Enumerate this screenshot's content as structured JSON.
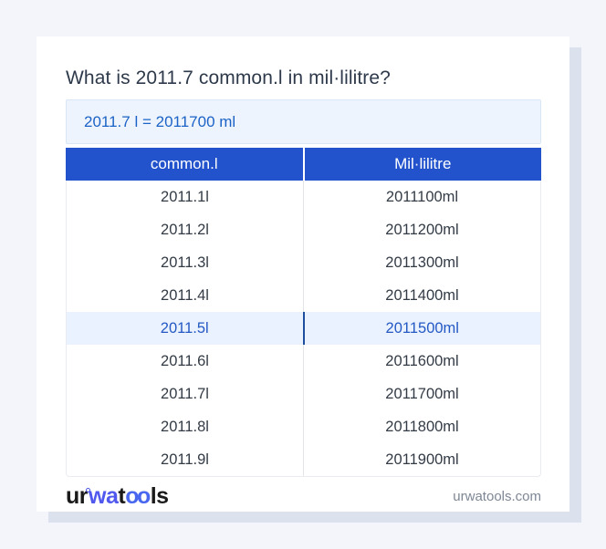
{
  "page": {
    "title": "What is 2011.7 common.l in mil·lilitre?",
    "answer_text": "2011.7 l = 2011700 ml"
  },
  "table": {
    "headers": [
      "common.l",
      "Mil·lilitre"
    ],
    "rows": [
      {
        "liters": "2011.1l",
        "milliliters": "2011100ml",
        "highlighted": false
      },
      {
        "liters": "2011.2l",
        "milliliters": "2011200ml",
        "highlighted": false
      },
      {
        "liters": "2011.3l",
        "milliliters": "2011300ml",
        "highlighted": false
      },
      {
        "liters": "2011.4l",
        "milliliters": "2011400ml",
        "highlighted": false
      },
      {
        "liters": "2011.5l",
        "milliliters": "2011500ml",
        "highlighted": true
      },
      {
        "liters": "2011.6l",
        "milliliters": "2011600ml",
        "highlighted": false
      },
      {
        "liters": "2011.7l",
        "milliliters": "2011700ml",
        "highlighted": false
      },
      {
        "liters": "2011.8l",
        "milliliters": "2011800ml",
        "highlighted": false
      },
      {
        "liters": "2011.9l",
        "milliliters": "2011900ml",
        "highlighted": false
      }
    ]
  },
  "footer": {
    "logo": {
      "part1": "ur",
      "part2": "wa",
      "part3": "t",
      "part4": "oo",
      "part5": "ls"
    },
    "domain": "urwatools.com"
  },
  "colors": {
    "page_background": "#f3f5fa",
    "card_shadow": "#dce1ee",
    "header_blue": "#2253cd",
    "answer_box_background": "#eef4fd",
    "answer_text_blue": "#1b63c6",
    "highlight_row_background": "#e9f2fe",
    "highlight_row_text": "#2458c4",
    "highlight_divider": "#1d4f9e",
    "logo_indigo": "#5058ee",
    "logo_blue": "#4968ef"
  }
}
